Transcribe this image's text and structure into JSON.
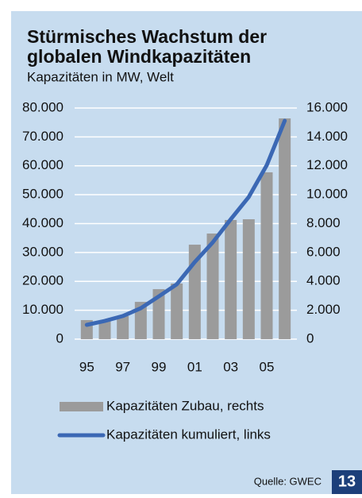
{
  "chart_data": {
    "type": "bar_line",
    "title": [
      "Stürmisches Wachstum der",
      "globalen Windkapazitäten"
    ],
    "subtitle": "Kapazitäten in MW, Welt",
    "categories": [
      "95",
      null,
      "97",
      null,
      "99",
      null,
      "01",
      null,
      "03",
      null,
      "05",
      null
    ],
    "series": [
      {
        "name": "Kapazitäten Zubau, rechts",
        "type": "bar",
        "axis": "y2",
        "color": "#9b9b9b",
        "values": [
          1320,
          1260,
          1600,
          2580,
          3460,
          3850,
          6540,
          7310,
          8250,
          8300,
          11550,
          15280
        ]
      },
      {
        "name": "Kapazitäten kumuliert, links",
        "type": "line",
        "axis": "y",
        "color": "#3b68b4",
        "values": [
          4950,
          6300,
          8000,
          10700,
          14800,
          19000,
          26700,
          33500,
          41500,
          49200,
          60200,
          75600
        ]
      }
    ],
    "ylim": [
      0,
      80000
    ],
    "yticks": [
      0,
      {
        "value": 10000,
        "label": "10.000"
      },
      {
        "value": 20000,
        "label": "20.000"
      },
      {
        "value": 30000,
        "label": "30.000"
      },
      {
        "value": 40000,
        "label": "40.000"
      },
      {
        "value": 50000,
        "label": "50.000"
      },
      {
        "value": 60000,
        "label": "60.000"
      },
      {
        "value": 70000,
        "label": "70.000"
      },
      {
        "value": 80000,
        "label": "80.000"
      }
    ],
    "y2lim": [
      0,
      16000
    ],
    "y2ticks": [
      0,
      {
        "value": 2000,
        "label": "2.000"
      },
      {
        "value": 4000,
        "label": "4.000"
      },
      {
        "value": 6000,
        "label": "6.000"
      },
      {
        "value": 8000,
        "label": "8.000"
      },
      {
        "value": 10000,
        "label": "10.000"
      },
      {
        "value": 12000,
        "label": "12.000"
      },
      {
        "value": 14000,
        "label": "14.000"
      },
      {
        "value": 16000,
        "label": "16.000"
      }
    ],
    "grid": true,
    "source": "Quelle: GWEC",
    "page_number": "13"
  }
}
